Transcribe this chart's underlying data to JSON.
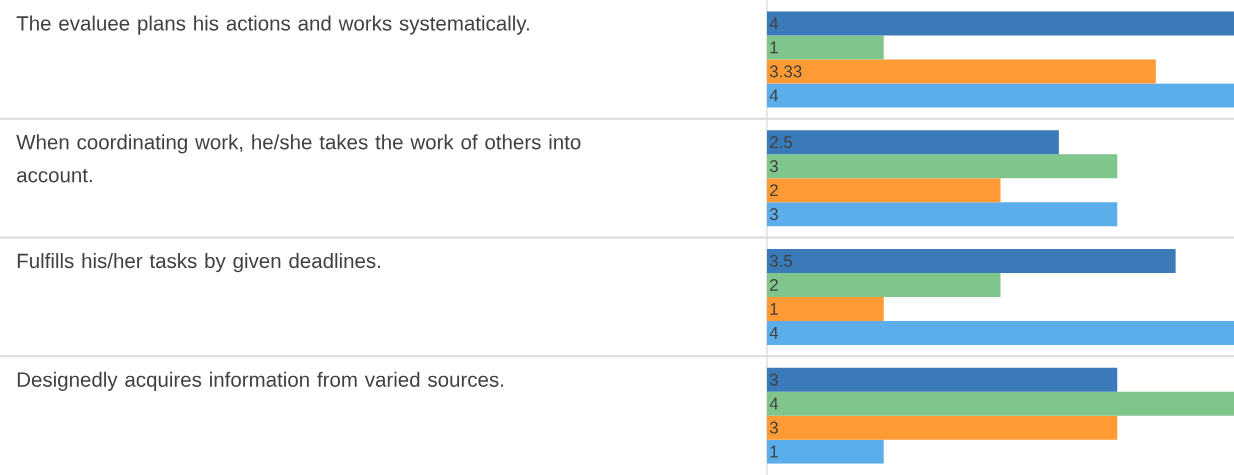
{
  "chart_data": {
    "type": "bar",
    "orientation": "horizontal",
    "categories": [
      "The evaluee plans his actions and works systematically.",
      "When coordinating work, he/she takes the work of others into account.",
      "Fulfills his/her tasks by given deadlines.",
      "Designedly acquires information from varied sources."
    ],
    "xlim": [
      0,
      4
    ],
    "series": [
      {
        "color": "#3a7ab8",
        "values": [
          4,
          2.5,
          3.5,
          3
        ],
        "value_labels": [
          "4",
          "2.5",
          "3.5",
          "3"
        ]
      },
      {
        "color": "#80c58c",
        "values": [
          1,
          3,
          2,
          4
        ],
        "value_labels": [
          "1",
          "3",
          "2",
          "4"
        ]
      },
      {
        "color": "#ff9a35",
        "values": [
          3.33,
          2,
          1,
          3
        ],
        "value_labels": [
          "3.33",
          "2",
          "1",
          "3"
        ]
      },
      {
        "color": "#5baeea",
        "values": [
          4,
          3,
          4,
          1
        ],
        "value_labels": [
          "4",
          "3",
          "4",
          "1"
        ]
      }
    ]
  }
}
